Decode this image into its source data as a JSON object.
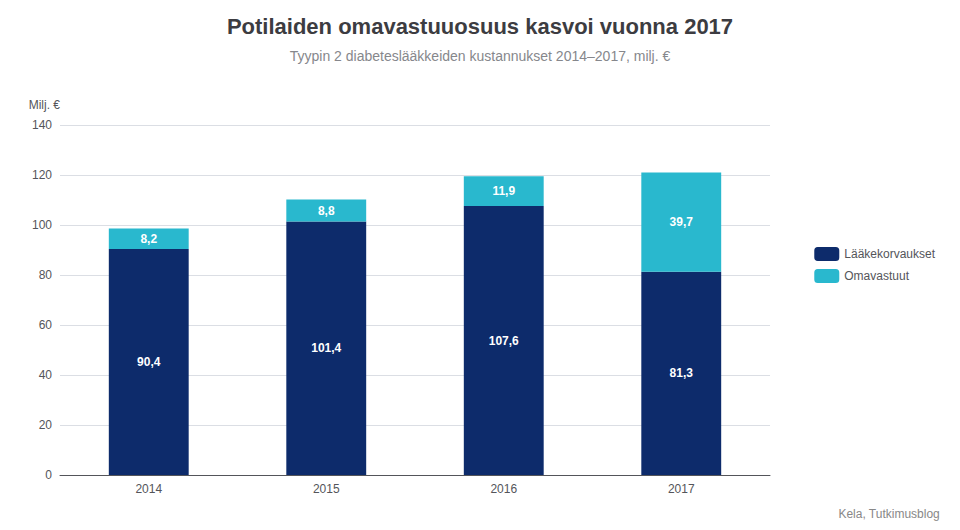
{
  "chart_data": {
    "type": "bar",
    "stacked": true,
    "title": "Potilaiden omavastuuosuus kasvoi vuonna 2017",
    "subtitle": "Tyypin 2 diabeteslääkkeiden kustannukset 2014–2017, milj. €",
    "ylabel": "Milj. €",
    "categories": [
      "2014",
      "2015",
      "2016",
      "2017"
    ],
    "series": [
      {
        "name": "Lääkekorvaukset",
        "color": "#0d2b6b",
        "values": [
          90.4,
          101.4,
          107.6,
          81.3
        ],
        "value_labels": [
          "90,4",
          "101,4",
          "107,6",
          "81,3"
        ]
      },
      {
        "name": "Omavastuut",
        "color": "#29b8ce",
        "values": [
          8.2,
          8.8,
          11.9,
          39.7
        ],
        "value_labels": [
          "8,2",
          "8,8",
          "11,9",
          "39,7"
        ]
      }
    ],
    "ylim": [
      0,
      140
    ],
    "yticks": [
      0,
      20,
      40,
      60,
      80,
      100,
      120,
      140
    ],
    "grid": true,
    "data_labels": true,
    "legend": "right",
    "source": "Kela, Tutkimusblog"
  }
}
